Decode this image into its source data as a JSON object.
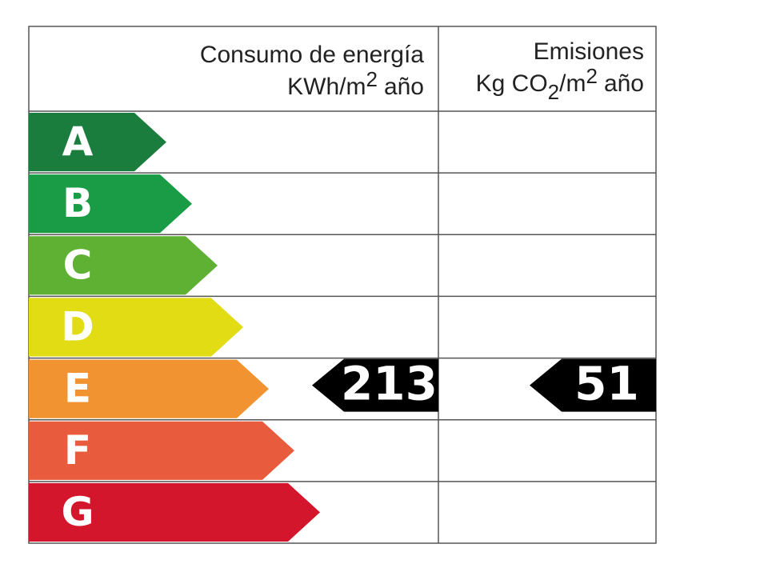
{
  "energy_header": {
    "title": "Consumo de energía",
    "unit": "KWh/m",
    "unit_sup": "2",
    "unit_tail": "año"
  },
  "emissions_header": {
    "title": "Emisiones",
    "unit_a": "Kg CO",
    "unit_sub": "2",
    "unit_b": "/m",
    "unit_sup": "2",
    "unit_tail": "año"
  },
  "ratings": [
    {
      "letter": "A",
      "color": "#1b7d3d"
    },
    {
      "letter": "B",
      "color": "#1a9b45"
    },
    {
      "letter": "C",
      "color": "#5fb133"
    },
    {
      "letter": "D",
      "color": "#e2dc14"
    },
    {
      "letter": "E",
      "color": "#f29331"
    },
    {
      "letter": "F",
      "color": "#e85b3d"
    },
    {
      "letter": "G",
      "color": "#d3162b"
    }
  ],
  "energy": {
    "value": 213,
    "rating": "E"
  },
  "emissions": {
    "value": 51,
    "rating": "E"
  }
}
